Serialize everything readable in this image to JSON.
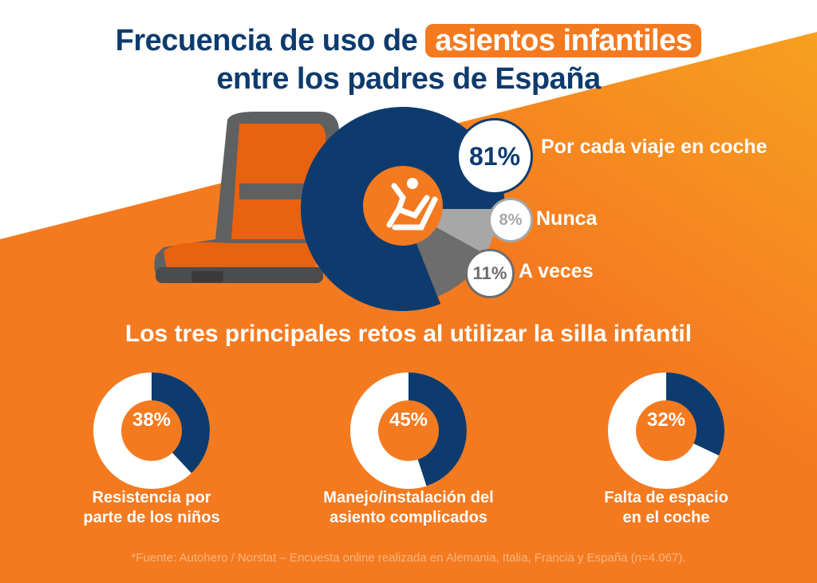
{
  "title": {
    "line1_prefix": "Frecuencia de uso de",
    "line1_highlight": "asientos infantiles",
    "line2": "entre los padres de España"
  },
  "colors": {
    "orange": "#f47a20",
    "navy": "#0d3b6e",
    "light_gray": "#a7a7a7",
    "dark_gray": "#6d6d6d",
    "white": "#ffffff"
  },
  "icons": {
    "center": "child-seat-icon",
    "illustration": "car-seat-illustration"
  },
  "chart_data": [
    {
      "type": "pie",
      "slices": [
        {
          "label": "Por cada viaje en coche",
          "value": 81,
          "display": "81%",
          "color": "#0d3b6e"
        },
        {
          "label": "Nunca",
          "value": 8,
          "display": "8%",
          "color": "#a7a7a7"
        },
        {
          "label": "A veces",
          "value": 11,
          "display": "11%",
          "color": "#6d6d6d"
        }
      ]
    },
    {
      "type": "pie",
      "title": "Los tres principales retos al utilizar la silla infantil",
      "charts": [
        {
          "label": "Resistencia por parte de los niños",
          "label_lines": [
            "Resistencia por",
            "parte de los niños"
          ],
          "value": 38,
          "display": "38%"
        },
        {
          "label": "Manejo/instalación del asiento complicados",
          "label_lines": [
            "Manejo/instalación del",
            "asiento complicados"
          ],
          "value": 45,
          "display": "45%"
        },
        {
          "label": "Falta de espacio en el coche",
          "label_lines": [
            "Falta de espacio",
            "en el coche"
          ],
          "value": 32,
          "display": "32%"
        }
      ]
    }
  ],
  "footer": "*Fuente: Autohero / Norstat – Encuesta online realizada en Alemania, Italia, Francia y España (n=4.067)."
}
